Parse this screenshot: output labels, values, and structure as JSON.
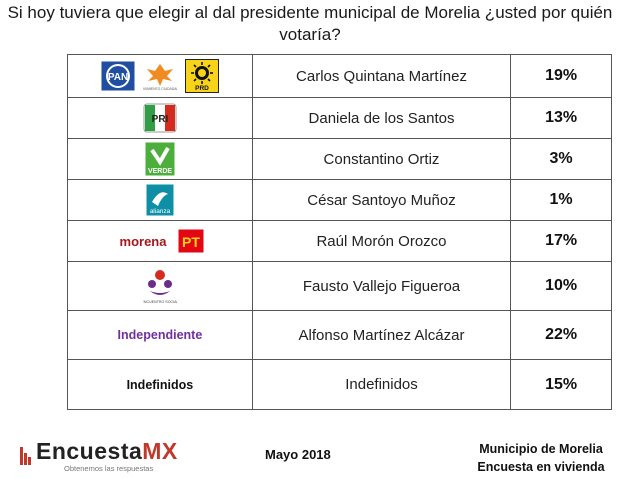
{
  "title": "Si hoy tuviera que elegir al dal presidente municipal de Morelia ¿usted por quién votaría?",
  "rows": [
    {
      "logos": [
        "PAN",
        "MOVIMIENTO CIUDADANO",
        "PRD"
      ],
      "candidate": "Carlos Quintana Martínez",
      "percent": "19%"
    },
    {
      "logos": [
        "PRI"
      ],
      "candidate": "Daniela de los Santos",
      "percent": "13%"
    },
    {
      "logos": [
        "VERDE"
      ],
      "candidate": "Constantino Ortiz",
      "percent": "3%"
    },
    {
      "logos": [
        "alianza"
      ],
      "candidate": "César Santoyo Muñoz",
      "percent": "1%"
    },
    {
      "logos": [
        "morena",
        "PT"
      ],
      "candidate": "Raúl Morón Orozco",
      "percent": "17%"
    },
    {
      "logos": [
        "ENCUENTRO SOCIAL"
      ],
      "candidate": "Fausto Vallejo Figueroa",
      "percent": "10%"
    },
    {
      "party_label": "Independiente",
      "party_color": "#7030a0",
      "candidate": "Alfonso Martínez Alcázar",
      "percent": "22%"
    },
    {
      "party_label": "Indefinidos",
      "party_color": "#111111",
      "candidate": "Indefinidos",
      "percent": "15%"
    }
  ],
  "footer": {
    "brand_prefix": "Encuesta",
    "brand_suffix": "MX",
    "tagline": "Obtenemos las respuestas",
    "date": "Mayo 2018",
    "line1": "Municipio de Morelia",
    "line2": "Encuesta en vivienda"
  },
  "colors": {
    "pan_blue": "#1f4ea3",
    "mc_orange": "#f18a1f",
    "prd_yellow": "#f7d417",
    "pri_red": "#d52b1e",
    "pri_green": "#2f9e44",
    "verde_green": "#4caf3c",
    "alianza_teal": "#0f8fa6",
    "morena_red": "#a5171c",
    "pt_red": "#e30613",
    "independiente_purple": "#7030a0"
  }
}
